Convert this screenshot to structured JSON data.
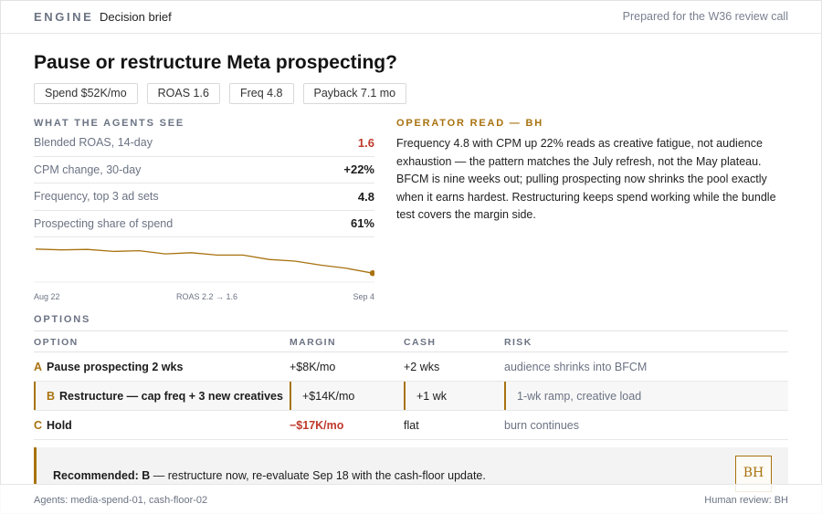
{
  "header": {
    "brand": "ENGINE",
    "doc_type": "Decision brief",
    "prepared": "Prepared for the W36 review call"
  },
  "title": "Pause or restructure Meta prospecting?",
  "chips": [
    "Spend $52K/mo",
    "ROAS 1.6",
    "Freq 4.8",
    "Payback 7.1 mo"
  ],
  "agents": {
    "title": "WHAT THE AGENTS SEE",
    "metrics": [
      {
        "label": "Blended ROAS, 14-day",
        "value": "1.6",
        "alert": true
      },
      {
        "label": "CPM change, 30-day",
        "value": "+22%",
        "alert": false
      },
      {
        "label": "Frequency, top 3 ad sets",
        "value": "4.8",
        "alert": false
      },
      {
        "label": "Prospecting share of spend",
        "value": "61%",
        "alert": false
      }
    ],
    "spark": {
      "start_label": "Aug 22",
      "mid_label": "ROAS 2.2 → 1.6",
      "end_label": "Sep 4",
      "color": "#a8720f"
    }
  },
  "chart_data": {
    "type": "line",
    "x": [
      "Aug 22",
      "Aug 23",
      "Aug 24",
      "Aug 25",
      "Aug 26",
      "Aug 27",
      "Aug 28",
      "Aug 29",
      "Aug 30",
      "Aug 31",
      "Sep 1",
      "Sep 2",
      "Sep 3",
      "Sep 4"
    ],
    "values": [
      2.2,
      2.18,
      2.19,
      2.14,
      2.16,
      2.08,
      2.11,
      2.05,
      2.05,
      1.94,
      1.9,
      1.8,
      1.72,
      1.6
    ],
    "ylim": [
      1.4,
      2.4
    ],
    "grid": false
  },
  "operator": {
    "title": "OPERATOR READ — BH",
    "text": "Frequency 4.8 with CPM up 22% reads as creative fatigue, not audience exhaustion — the pattern matches the July refresh, not the May plateau. BFCM is nine weeks out; pulling prospecting now shrinks the pool exactly when it earns hardest. Restructuring keeps spend working while the bundle test covers the margin side."
  },
  "options": {
    "title": "OPTIONS",
    "headers": [
      "OPTION",
      "MARGIN",
      "CASH",
      "RISK"
    ],
    "rows": [
      {
        "letter": "A",
        "name": "Pause prospecting 2 wks",
        "margin": "+$8K/mo",
        "cash": "+2 wks",
        "risk": "audience shrinks into BFCM"
      },
      {
        "letter": "B",
        "name": "Restructure — cap freq + 3 new creatives",
        "margin": "+$14K/mo",
        "cash": "+1 wk",
        "risk": "1-wk ramp, creative load"
      },
      {
        "letter": "C",
        "name": "Hold",
        "margin": "−$17K/mo",
        "cash": "flat",
        "risk": "burn continues"
      }
    ]
  },
  "recommendation": {
    "lead": "Recommended: B",
    "text": " — restructure now, re-evaluate Sep 18 with the cash-floor update.",
    "seal": "BH"
  },
  "footer": {
    "agents": "Agents: media-spend-01, cash-floor-02",
    "review": "Human review: BH"
  },
  "colors": {
    "accent": "#a8720f",
    "negative": "#c0392b",
    "muted": "#6b7383"
  }
}
